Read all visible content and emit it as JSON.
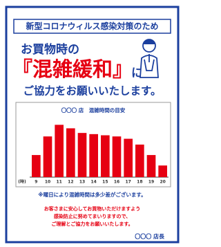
{
  "banner": "新型コロナウィルス感染対策のため",
  "line1": "お買物時の",
  "highlight": "『混雑緩和』",
  "highlight_suffix": "に",
  "line3": "ご協力をお願いいたします。",
  "chart_data": {
    "type": "bar",
    "title": "〇〇〇 店　混雑時間の目安",
    "x_unit": "(時)",
    "categories": [
      "9",
      "10",
      "11",
      "12",
      "13",
      "14",
      "15",
      "16",
      "17",
      "18",
      "19",
      "20"
    ],
    "values": [
      38,
      70,
      90,
      84,
      76,
      74,
      72,
      70,
      66,
      56,
      38,
      20
    ],
    "color": "#e60012",
    "ylim": [
      0,
      100
    ]
  },
  "note": "※曜日により混雑時間は多少差がございます。",
  "message": [
    "お客さまに安心してお買物いただけますよう",
    "感染防止に努めてまいりますので、",
    "ご理解とご協力をお願いいたします。"
  ],
  "signature": "〇〇〇 店長"
}
